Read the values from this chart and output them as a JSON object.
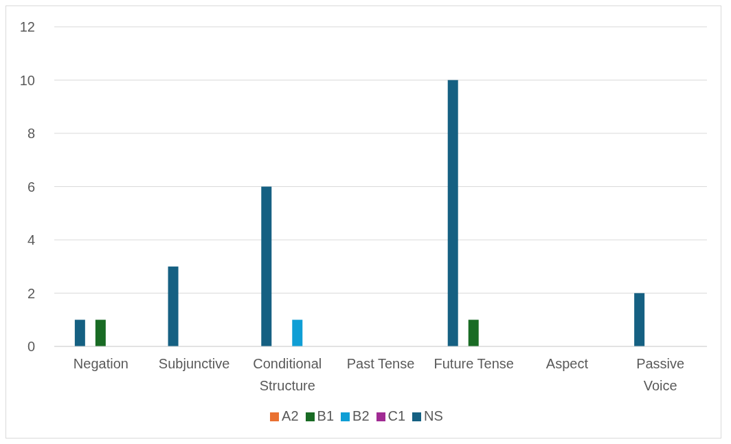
{
  "chart_data": {
    "type": "bar",
    "categories": [
      "Negation",
      "Subjunctive",
      "Conditional Structure",
      "Past Tense",
      "Future Tense",
      "Aspect",
      "Passive Voice"
    ],
    "series": [
      {
        "name": "NS",
        "color": "#156082",
        "values": [
          1,
          3,
          6,
          0,
          10,
          0,
          2
        ]
      },
      {
        "name": "A2",
        "color": "#e97132",
        "values": [
          0,
          0,
          0,
          0,
          0,
          0,
          0
        ]
      },
      {
        "name": "B1",
        "color": "#196b24",
        "values": [
          1,
          0,
          0,
          0,
          1,
          0,
          0
        ]
      },
      {
        "name": "B2",
        "color": "#0f9ed5",
        "values": [
          0,
          0,
          1,
          0,
          0,
          0,
          0
        ]
      },
      {
        "name": "C1",
        "color": "#a02b93",
        "values": [
          0,
          0,
          0,
          0,
          0,
          0,
          0
        ]
      }
    ],
    "ylim": [
      0,
      12
    ],
    "yticks": [
      0,
      2,
      4,
      6,
      8,
      10,
      12
    ],
    "grid": "y",
    "legend": "bottom"
  }
}
